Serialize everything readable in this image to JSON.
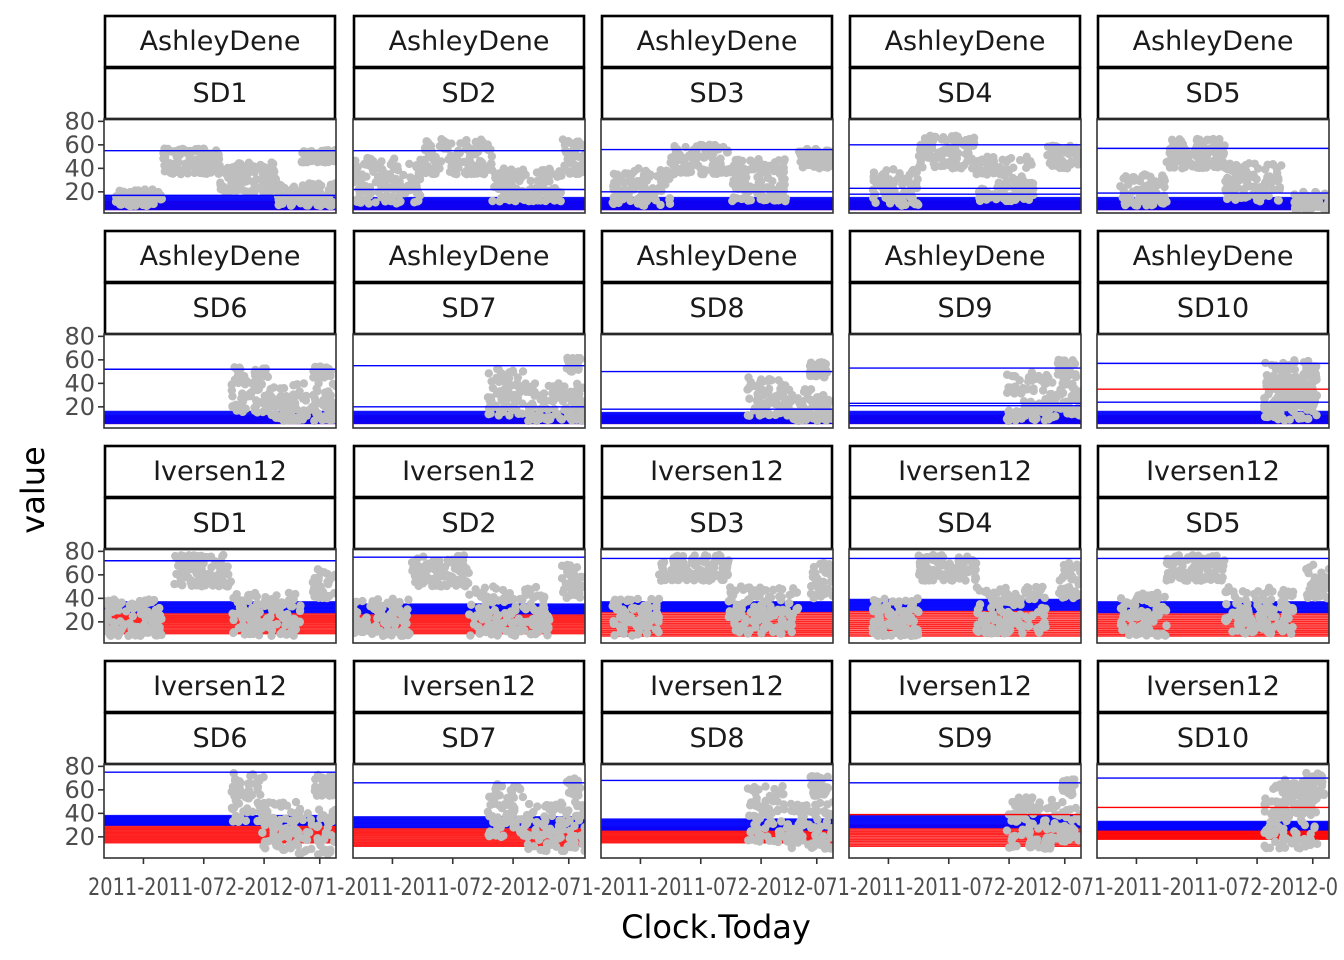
{
  "chart_data": {
    "type": "scatter",
    "facet_layout": "facet_wrap(Experiment ~ Name)",
    "xlabel": "Clock.Today",
    "ylabel": "value",
    "y_ticks": [
      20,
      40,
      60,
      80
    ],
    "y_range": [
      2,
      82
    ],
    "x_tick_labels": [
      "2011",
      "2011-07",
      "2012-01",
      "2012-07"
    ],
    "x_tick_labels_rendered": [
      "2011",
      "-2011-07",
      "2-2012-07",
      "1-2012-0"
    ],
    "colors": {
      "points": "#bebebe",
      "observed_line": "#0000ff",
      "predicted_line": "#ff0000",
      "panel_border": "#333333",
      "strip_border": "#000000"
    },
    "panels": [
      {
        "experiment": "AshleyDene",
        "name": "SD1",
        "start": 0.0,
        "upper_blue": 55,
        "blue_band": [
          5,
          16
        ],
        "red_band": [
          5,
          12
        ],
        "red_lines": [],
        "blue_lines": [
          17
        ],
        "clouds": [
          [
            0.05,
            0.25,
            8,
            22
          ],
          [
            0.25,
            0.5,
            35,
            57
          ],
          [
            0.5,
            0.75,
            20,
            45
          ],
          [
            0.75,
            1.0,
            8,
            28
          ],
          [
            0.85,
            1.0,
            45,
            56
          ]
        ]
      },
      {
        "experiment": "AshleyDene",
        "name": "SD2",
        "start": 0.0,
        "upper_blue": 55,
        "blue_band": [
          5,
          15
        ],
        "red_band": [
          5,
          12
        ],
        "red_lines": [],
        "blue_lines": [
          22
        ],
        "clouds": [
          [
            0.0,
            0.3,
            10,
            50
          ],
          [
            0.3,
            0.6,
            35,
            65
          ],
          [
            0.6,
            0.9,
            12,
            40
          ],
          [
            0.9,
            1.0,
            35,
            65
          ]
        ]
      },
      {
        "experiment": "AshleyDene",
        "name": "SD3",
        "start": 0.0,
        "upper_blue": 56,
        "blue_band": [
          5,
          15
        ],
        "red_band": [
          5,
          12
        ],
        "red_lines": [],
        "blue_lines": [
          20
        ],
        "clouds": [
          [
            0.05,
            0.3,
            8,
            40
          ],
          [
            0.3,
            0.55,
            35,
            60
          ],
          [
            0.55,
            0.8,
            12,
            48
          ],
          [
            0.85,
            1.0,
            40,
            57
          ]
        ]
      },
      {
        "experiment": "AshleyDene",
        "name": "SD4",
        "start": 0.0,
        "upper_blue": 60,
        "blue_band": [
          5,
          15
        ],
        "red_band": [
          5,
          12
        ],
        "red_lines": [],
        "blue_lines": [
          18,
          23
        ],
        "clouds": [
          [
            0.1,
            0.3,
            8,
            40
          ],
          [
            0.3,
            0.55,
            40,
            68
          ],
          [
            0.55,
            0.8,
            12,
            50
          ],
          [
            0.85,
            1.0,
            40,
            60
          ]
        ]
      },
      {
        "experiment": "AshleyDene",
        "name": "SD5",
        "start": 0.0,
        "upper_blue": 57,
        "blue_band": [
          5,
          15
        ],
        "red_band": [
          5,
          12
        ],
        "red_lines": [],
        "blue_lines": [
          19
        ],
        "clouds": [
          [
            0.1,
            0.3,
            8,
            35
          ],
          [
            0.3,
            0.55,
            40,
            65
          ],
          [
            0.55,
            0.8,
            12,
            45
          ],
          [
            0.85,
            1.0,
            5,
            20
          ]
        ]
      },
      {
        "experiment": "AshleyDene",
        "name": "SD6",
        "start": 0.55,
        "upper_blue": 52,
        "blue_band": [
          6,
          16
        ],
        "red_band": [
          6,
          12
        ],
        "red_lines": [],
        "blue_lines": [],
        "clouds": [
          [
            0.55,
            0.72,
            15,
            55
          ],
          [
            0.72,
            1.0,
            8,
            40
          ],
          [
            0.9,
            0.98,
            45,
            55
          ]
        ]
      },
      {
        "experiment": "AshleyDene",
        "name": "SD7",
        "start": 0.58,
        "upper_blue": 55,
        "blue_band": [
          6,
          16
        ],
        "red_band": [
          6,
          12
        ],
        "red_lines": [],
        "blue_lines": [
          20
        ],
        "clouds": [
          [
            0.58,
            0.75,
            12,
            53
          ],
          [
            0.75,
            1.0,
            8,
            40
          ],
          [
            0.92,
            0.98,
            50,
            62
          ]
        ]
      },
      {
        "experiment": "AshleyDene",
        "name": "SD8",
        "start": 0.63,
        "upper_blue": 50,
        "blue_band": [
          6,
          15
        ],
        "red_band": [
          6,
          12
        ],
        "red_lines": [],
        "blue_lines": [
          18
        ],
        "clouds": [
          [
            0.63,
            0.8,
            12,
            45
          ],
          [
            0.8,
            1.0,
            8,
            35
          ],
          [
            0.9,
            0.98,
            45,
            58
          ]
        ]
      },
      {
        "experiment": "AshleyDene",
        "name": "SD9",
        "start": 0.68,
        "upper_blue": 53,
        "blue_band": [
          6,
          16
        ],
        "red_band": [
          6,
          12
        ],
        "red_lines": [],
        "blue_lines": [
          21,
          23
        ],
        "clouds": [
          [
            0.68,
            0.88,
            8,
            50
          ],
          [
            0.88,
            1.0,
            12,
            40
          ],
          [
            0.9,
            0.98,
            45,
            60
          ]
        ]
      },
      {
        "experiment": "AshleyDene",
        "name": "SD10",
        "start": 0.72,
        "upper_blue": 57,
        "blue_band": [
          6,
          16
        ],
        "red_band": [
          6,
          12
        ],
        "red_lines": [
          35
        ],
        "blue_lines": [
          24
        ],
        "clouds": [
          [
            0.72,
            0.95,
            8,
            60
          ],
          [
            0.75,
            0.95,
            20,
            55
          ]
        ]
      },
      {
        "experiment": "Iversen12",
        "name": "SD1",
        "start": 0.0,
        "upper_blue": 72,
        "blue_band": [
          28,
          37
        ],
        "red_band": [
          10,
          27
        ],
        "red_lines": [],
        "blue_lines": [],
        "clouds": [
          [
            0.0,
            0.25,
            8,
            40
          ],
          [
            0.3,
            0.55,
            50,
            77
          ],
          [
            0.55,
            0.85,
            8,
            45
          ],
          [
            0.9,
            1.0,
            40,
            65
          ]
        ]
      },
      {
        "experiment": "Iversen12",
        "name": "SD2",
        "start": 0.0,
        "upper_blue": 75,
        "blue_band": [
          27,
          35
        ],
        "red_band": [
          10,
          27
        ],
        "red_lines": [],
        "blue_lines": [],
        "clouds": [
          [
            0.0,
            0.25,
            8,
            40
          ],
          [
            0.25,
            0.5,
            50,
            77
          ],
          [
            0.5,
            0.85,
            8,
            50
          ],
          [
            0.9,
            1.0,
            40,
            70
          ]
        ]
      },
      {
        "experiment": "Iversen12",
        "name": "SD3",
        "start": 0.0,
        "upper_blue": 74,
        "blue_band": [
          29,
          37
        ],
        "red_band": [
          8,
          28
        ],
        "red_lines": [],
        "blue_lines": [],
        "clouds": [
          [
            0.05,
            0.25,
            8,
            40
          ],
          [
            0.25,
            0.55,
            55,
            77
          ],
          [
            0.55,
            0.85,
            10,
            50
          ],
          [
            0.9,
            1.0,
            40,
            70
          ]
        ]
      },
      {
        "experiment": "Iversen12",
        "name": "SD4",
        "start": 0.0,
        "upper_blue": 74,
        "blue_band": [
          30,
          39
        ],
        "red_band": [
          8,
          29
        ],
        "red_lines": [],
        "blue_lines": [],
        "clouds": [
          [
            0.1,
            0.3,
            8,
            40
          ],
          [
            0.3,
            0.55,
            55,
            77
          ],
          [
            0.55,
            0.85,
            10,
            50
          ],
          [
            0.9,
            1.0,
            40,
            70
          ]
        ]
      },
      {
        "experiment": "Iversen12",
        "name": "SD5",
        "start": 0.0,
        "upper_blue": 74,
        "blue_band": [
          28,
          37
        ],
        "red_band": [
          8,
          28
        ],
        "red_lines": [],
        "blue_lines": [],
        "clouds": [
          [
            0.1,
            0.3,
            8,
            45
          ],
          [
            0.3,
            0.55,
            55,
            77
          ],
          [
            0.55,
            0.85,
            10,
            50
          ],
          [
            0.9,
            1.0,
            40,
            70
          ]
        ]
      },
      {
        "experiment": "Iversen12",
        "name": "SD6",
        "start": 0.55,
        "upper_blue": 75,
        "blue_band": [
          30,
          38
        ],
        "red_band": [
          15,
          30
        ],
        "red_lines": [],
        "blue_lines": [],
        "clouds": [
          [
            0.55,
            0.7,
            30,
            77
          ],
          [
            0.68,
            1.0,
            5,
            50
          ],
          [
            0.9,
            1.0,
            55,
            75
          ]
        ]
      },
      {
        "experiment": "Iversen12",
        "name": "SD7",
        "start": 0.58,
        "upper_blue": 66,
        "blue_band": [
          28,
          37
        ],
        "red_band": [
          12,
          28
        ],
        "red_lines": [],
        "blue_lines": [],
        "clouds": [
          [
            0.58,
            0.75,
            20,
            65
          ],
          [
            0.75,
            1.0,
            8,
            50
          ],
          [
            0.92,
            0.98,
            55,
            70
          ]
        ]
      },
      {
        "experiment": "Iversen12",
        "name": "SD8",
        "start": 0.63,
        "upper_blue": 68,
        "blue_band": [
          26,
          35
        ],
        "red_band": [
          15,
          28
        ],
        "red_lines": [],
        "blue_lines": [],
        "clouds": [
          [
            0.63,
            0.8,
            15,
            65
          ],
          [
            0.8,
            1.0,
            10,
            50
          ],
          [
            0.9,
            0.98,
            55,
            72
          ]
        ]
      },
      {
        "experiment": "Iversen12",
        "name": "SD9",
        "start": 0.68,
        "upper_blue": 66,
        "blue_band": [
          28,
          38
        ],
        "red_band": [
          12,
          30
        ],
        "red_lines": [
          39
        ],
        "blue_lines": [],
        "clouds": [
          [
            0.68,
            0.88,
            10,
            55
          ],
          [
            0.88,
            1.0,
            15,
            50
          ],
          [
            0.92,
            0.98,
            55,
            70
          ]
        ]
      },
      {
        "experiment": "Iversen12",
        "name": "SD10",
        "start": 0.72,
        "upper_blue": 70,
        "blue_band": [
          26,
          33
        ],
        "red_band": [
          18,
          27
        ],
        "red_lines": [
          45
        ],
        "blue_lines": [],
        "clouds": [
          [
            0.72,
            0.95,
            10,
            65
          ],
          [
            0.78,
            0.95,
            40,
            70
          ],
          [
            0.9,
            0.98,
            55,
            75
          ]
        ]
      }
    ]
  }
}
